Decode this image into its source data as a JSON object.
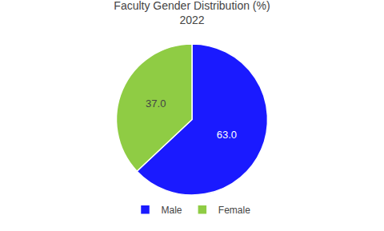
{
  "chart_data": {
    "type": "pie",
    "title": "Faculty Gender Distribution (%)",
    "subtitle": "2022",
    "categories": [
      "Male",
      "Female"
    ],
    "values": [
      63.0,
      37.0
    ],
    "value_labels": [
      "63.0",
      "37.0"
    ],
    "colors": [
      "#1a1aff",
      "#8fcc44"
    ],
    "legend": "bottom"
  }
}
